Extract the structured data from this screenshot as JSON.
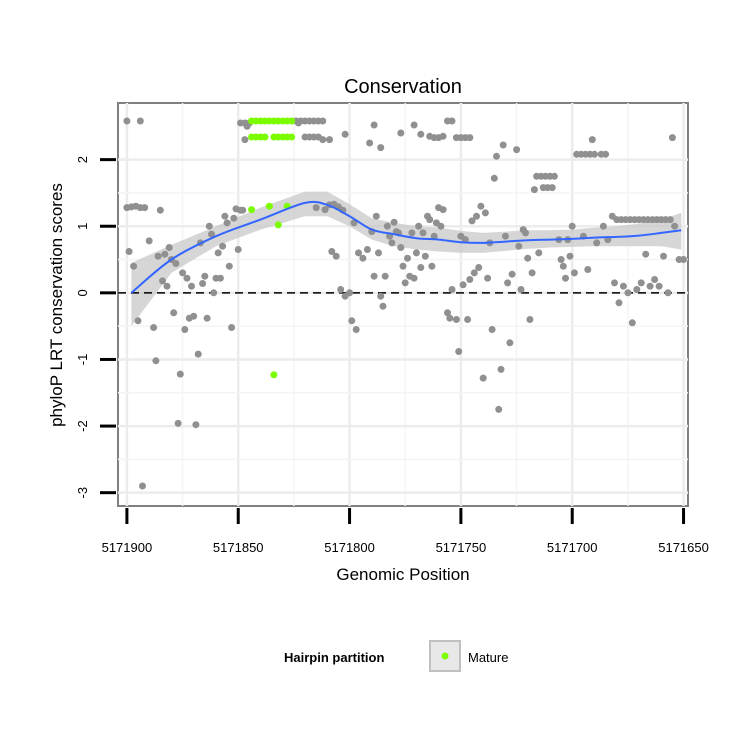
{
  "chart_data": {
    "type": "scatter",
    "title": "Conservation",
    "xlabel": "Genomic Position",
    "ylabel": "phyloP LRT conservation scores",
    "x_reversed": true,
    "xlim": [
      5171904,
      5171648
    ],
    "ylim": [
      -3.2,
      2.85
    ],
    "x_ticks": [
      5171900,
      5171850,
      5171800,
      5171750,
      5171700,
      5171650
    ],
    "x_tick_labels": [
      "5171900",
      "5171850",
      "5171800",
      "5171750",
      "5171700",
      "5171650"
    ],
    "y_ticks": [
      -3,
      -2,
      -1,
      0,
      1,
      2
    ],
    "y_tick_labels": [
      "-3",
      "-2",
      "-1",
      "0",
      "1",
      "2"
    ],
    "reference_line": {
      "y": 0,
      "style": "dashed"
    },
    "legend": {
      "title": "Hairpin partition",
      "entries": [
        {
          "label": "Mature",
          "color": "#7cfc00"
        }
      ],
      "position": "bottom"
    },
    "colors": {
      "other": "#909090",
      "mature": "#7cfc00",
      "trend": "#3366ff",
      "band": "#c8c8c8"
    },
    "series": [
      {
        "name": "Other",
        "points": [
          [
            5171900,
            2.58
          ],
          [
            5171894,
            2.58
          ],
          [
            5171900,
            1.28
          ],
          [
            5171898,
            1.29
          ],
          [
            5171896,
            1.3
          ],
          [
            5171894,
            1.28
          ],
          [
            5171892,
            1.28
          ],
          [
            5171899,
            0.62
          ],
          [
            5171897,
            0.4
          ],
          [
            5171895,
            -0.42
          ],
          [
            5171893,
            -2.9
          ],
          [
            5171890,
            0.78
          ],
          [
            5171888,
            -0.52
          ],
          [
            5171887,
            -1.02
          ],
          [
            5171886,
            0.55
          ],
          [
            5171885,
            1.24
          ],
          [
            5171884,
            0.18
          ],
          [
            5171883,
            0.58
          ],
          [
            5171882,
            0.1
          ],
          [
            5171881,
            0.68
          ],
          [
            5171880,
            0.5
          ],
          [
            5171879,
            -0.3
          ],
          [
            5171878,
            0.44
          ],
          [
            5171877,
            -1.96
          ],
          [
            5171876,
            -1.22
          ],
          [
            5171875,
            0.3
          ],
          [
            5171874,
            -0.55
          ],
          [
            5171873,
            0.22
          ],
          [
            5171872,
            -0.38
          ],
          [
            5171871,
            0.1
          ],
          [
            5171870,
            -0.35
          ],
          [
            5171869,
            -1.98
          ],
          [
            5171868,
            -0.92
          ],
          [
            5171867,
            0.75
          ],
          [
            5171866,
            0.14
          ],
          [
            5171865,
            0.25
          ],
          [
            5171864,
            -0.38
          ],
          [
            5171863,
            1.0
          ],
          [
            5171862,
            0.88
          ],
          [
            5171861,
            0.0
          ],
          [
            5171860,
            0.22
          ],
          [
            5171859,
            0.6
          ],
          [
            5171858,
            0.22
          ],
          [
            5171857,
            0.7
          ],
          [
            5171856,
            1.15
          ],
          [
            5171855,
            1.05
          ],
          [
            5171854,
            0.4
          ],
          [
            5171853,
            -0.52
          ],
          [
            5171852,
            1.12
          ],
          [
            5171851,
            1.26
          ],
          [
            5171850,
            0.65
          ],
          [
            5171849,
            1.24
          ],
          [
            5171848,
            1.24
          ],
          [
            5171847,
            2.3
          ],
          [
            5171846,
            2.5
          ],
          [
            5171845,
            2.55
          ],
          [
            5171822,
            2.58
          ],
          [
            5171820,
            2.58
          ],
          [
            5171818,
            2.58
          ],
          [
            5171816,
            2.58
          ],
          [
            5171814,
            2.58
          ],
          [
            5171812,
            2.58
          ],
          [
            5171820,
            2.34
          ],
          [
            5171818,
            2.34
          ],
          [
            5171816,
            2.34
          ],
          [
            5171814,
            2.34
          ],
          [
            5171812,
            2.3
          ],
          [
            5171815,
            1.28
          ],
          [
            5171811,
            1.25
          ],
          [
            5171809,
            1.32
          ],
          [
            5171807,
            1.33
          ],
          [
            5171805,
            1.29
          ],
          [
            5171803,
            1.24
          ],
          [
            5171808,
            0.62
          ],
          [
            5171806,
            0.55
          ],
          [
            5171804,
            0.05
          ],
          [
            5171802,
            -0.05
          ],
          [
            5171800,
            0.0
          ],
          [
            5171799,
            -0.42
          ],
          [
            5171797,
            -0.55
          ],
          [
            5171798,
            1.05
          ],
          [
            5171796,
            0.6
          ],
          [
            5171794,
            0.52
          ],
          [
            5171792,
            0.65
          ],
          [
            5171790,
            0.92
          ],
          [
            5171789,
            0.25
          ],
          [
            5171788,
            1.15
          ],
          [
            5171787,
            0.6
          ],
          [
            5171786,
            -0.05
          ],
          [
            5171785,
            -0.2
          ],
          [
            5171784,
            0.25
          ],
          [
            5171783,
            1.0
          ],
          [
            5171782,
            0.85
          ],
          [
            5171781,
            0.75
          ],
          [
            5171780,
            1.06
          ],
          [
            5171779,
            0.92
          ],
          [
            5171778,
            0.9
          ],
          [
            5171777,
            0.68
          ],
          [
            5171776,
            0.4
          ],
          [
            5171775,
            0.15
          ],
          [
            5171774,
            0.52
          ],
          [
            5171773,
            0.25
          ],
          [
            5171772,
            0.9
          ],
          [
            5171771,
            0.22
          ],
          [
            5171770,
            0.6
          ],
          [
            5171769,
            1.0
          ],
          [
            5171768,
            0.38
          ],
          [
            5171767,
            0.9
          ],
          [
            5171766,
            0.55
          ],
          [
            5171765,
            1.15
          ],
          [
            5171764,
            1.1
          ],
          [
            5171763,
            0.4
          ],
          [
            5171762,
            0.85
          ],
          [
            5171761,
            1.05
          ],
          [
            5171760,
            1.28
          ],
          [
            5171759,
            1.0
          ],
          [
            5171758,
            1.25
          ],
          [
            5171756,
            -0.3
          ],
          [
            5171755,
            -0.38
          ],
          [
            5171754,
            0.05
          ],
          [
            5171752,
            -0.4
          ],
          [
            5171751,
            -0.88
          ],
          [
            5171750,
            0.85
          ],
          [
            5171749,
            0.12
          ],
          [
            5171748,
            0.8
          ],
          [
            5171747,
            -0.4
          ],
          [
            5171746,
            0.2
          ],
          [
            5171745,
            1.08
          ],
          [
            5171744,
            0.3
          ],
          [
            5171743,
            1.15
          ],
          [
            5171742,
            0.38
          ],
          [
            5171741,
            1.3
          ],
          [
            5171740,
            -1.28
          ],
          [
            5171739,
            1.2
          ],
          [
            5171738,
            0.22
          ],
          [
            5171737,
            0.75
          ],
          [
            5171736,
            -0.55
          ],
          [
            5171735,
            1.72
          ],
          [
            5171734,
            2.05
          ],
          [
            5171733,
            -1.75
          ],
          [
            5171732,
            -1.15
          ],
          [
            5171731,
            2.22
          ],
          [
            5171730,
            0.85
          ],
          [
            5171729,
            0.15
          ],
          [
            5171728,
            -0.75
          ],
          [
            5171727,
            0.28
          ],
          [
            5171725,
            2.15
          ],
          [
            5171724,
            0.7
          ],
          [
            5171723,
            0.05
          ],
          [
            5171722,
            0.95
          ],
          [
            5171721,
            0.9
          ],
          [
            5171720,
            0.52
          ],
          [
            5171719,
            -0.4
          ],
          [
            5171718,
            0.3
          ],
          [
            5171717,
            1.55
          ],
          [
            5171716,
            1.75
          ],
          [
            5171714,
            1.75
          ],
          [
            5171712,
            1.75
          ],
          [
            5171710,
            1.75
          ],
          [
            5171708,
            1.75
          ],
          [
            5171715,
            0.6
          ],
          [
            5171713,
            1.58
          ],
          [
            5171711,
            1.58
          ],
          [
            5171709,
            1.58
          ],
          [
            5171706,
            0.8
          ],
          [
            5171705,
            0.5
          ],
          [
            5171704,
            0.4
          ],
          [
            5171703,
            0.22
          ],
          [
            5171702,
            0.8
          ],
          [
            5171701,
            0.55
          ],
          [
            5171700,
            1.0
          ],
          [
            5171699,
            0.3
          ],
          [
            5171698,
            2.08
          ],
          [
            5171696,
            2.08
          ],
          [
            5171694,
            2.08
          ],
          [
            5171692,
            2.08
          ],
          [
            5171690,
            2.08
          ],
          [
            5171695,
            0.85
          ],
          [
            5171693,
            0.35
          ],
          [
            5171691,
            2.3
          ],
          [
            5171689,
            0.75
          ],
          [
            5171687,
            2.08
          ],
          [
            5171685,
            2.08
          ],
          [
            5171686,
            1.0
          ],
          [
            5171684,
            0.8
          ],
          [
            5171682,
            1.15
          ],
          [
            5171680,
            1.1
          ],
          [
            5171678,
            1.1
          ],
          [
            5171676,
            1.1
          ],
          [
            5171674,
            1.1
          ],
          [
            5171672,
            1.1
          ],
          [
            5171670,
            1.1
          ],
          [
            5171668,
            1.1
          ],
          [
            5171666,
            1.1
          ],
          [
            5171664,
            1.1
          ],
          [
            5171662,
            1.1
          ],
          [
            5171660,
            1.1
          ],
          [
            5171658,
            1.1
          ],
          [
            5171656,
            1.1
          ],
          [
            5171681,
            0.15
          ],
          [
            5171679,
            -0.15
          ],
          [
            5171677,
            0.1
          ],
          [
            5171675,
            0.0
          ],
          [
            5171673,
            -0.45
          ],
          [
            5171671,
            0.05
          ],
          [
            5171669,
            0.15
          ],
          [
            5171667,
            0.58
          ],
          [
            5171665,
            0.1
          ],
          [
            5171663,
            0.2
          ],
          [
            5171661,
            0.1
          ],
          [
            5171659,
            0.55
          ],
          [
            5171657,
            0.0
          ],
          [
            5171655,
            2.33
          ],
          [
            5171654,
            1.0
          ],
          [
            5171652,
            0.5
          ],
          [
            5171650,
            0.5
          ],
          [
            5171849,
            2.55
          ],
          [
            5171847,
            2.55
          ],
          [
            5171824,
            2.58
          ],
          [
            5171823,
            2.55
          ],
          [
            5171809,
            2.3
          ],
          [
            5171802,
            2.38
          ],
          [
            5171791,
            2.25
          ],
          [
            5171789,
            2.52
          ],
          [
            5171786,
            2.18
          ],
          [
            5171777,
            2.4
          ],
          [
            5171771,
            2.52
          ],
          [
            5171768,
            2.38
          ],
          [
            5171764,
            2.35
          ],
          [
            5171762,
            2.33
          ],
          [
            5171760,
            2.33
          ],
          [
            5171758,
            2.35
          ],
          [
            5171756,
            2.58
          ],
          [
            5171754,
            2.58
          ],
          [
            5171752,
            2.33
          ],
          [
            5171750,
            2.33
          ],
          [
            5171748,
            2.33
          ],
          [
            5171746,
            2.33
          ]
        ]
      },
      {
        "name": "Mature",
        "points": [
          [
            5171844,
            2.58
          ],
          [
            5171842,
            2.58
          ],
          [
            5171840,
            2.58
          ],
          [
            5171838,
            2.58
          ],
          [
            5171836,
            2.58
          ],
          [
            5171834,
            2.58
          ],
          [
            5171832,
            2.58
          ],
          [
            5171830,
            2.58
          ],
          [
            5171828,
            2.58
          ],
          [
            5171826,
            2.58
          ],
          [
            5171844,
            2.34
          ],
          [
            5171842,
            2.34
          ],
          [
            5171840,
            2.34
          ],
          [
            5171838,
            2.34
          ],
          [
            5171834,
            2.34
          ],
          [
            5171832,
            2.34
          ],
          [
            5171830,
            2.34
          ],
          [
            5171828,
            2.34
          ],
          [
            5171826,
            2.34
          ],
          [
            5171844,
            1.25
          ],
          [
            5171836,
            1.3
          ],
          [
            5171828,
            1.3
          ],
          [
            5171832,
            1.02
          ],
          [
            5171834,
            -1.23
          ]
        ]
      }
    ],
    "trend": {
      "x": [
        5171898,
        5171880,
        5171860,
        5171840,
        5171820,
        5171810,
        5171800,
        5171790,
        5171780,
        5171770,
        5171760,
        5171750,
        5171740,
        5171730,
        5171720,
        5171710,
        5171700,
        5171690,
        5171680,
        5171670,
        5171660,
        5171651
      ],
      "y": [
        0.0,
        0.5,
        0.85,
        1.1,
        1.35,
        1.32,
        1.15,
        0.95,
        0.88,
        0.82,
        0.8,
        0.76,
        0.75,
        0.77,
        0.79,
        0.8,
        0.81,
        0.83,
        0.84,
        0.86,
        0.9,
        0.94
      ],
      "lower": [
        -0.5,
        0.3,
        0.7,
        0.95,
        1.15,
        1.15,
        1.0,
        0.8,
        0.7,
        0.65,
        0.62,
        0.6,
        0.6,
        0.63,
        0.66,
        0.68,
        0.69,
        0.7,
        0.7,
        0.7,
        0.7,
        0.65
      ],
      "upper": [
        0.45,
        0.72,
        1.0,
        1.28,
        1.52,
        1.52,
        1.33,
        1.12,
        1.05,
        1.0,
        0.98,
        0.93,
        0.9,
        0.92,
        0.94,
        0.94,
        0.95,
        0.98,
        1.0,
        1.04,
        1.1,
        1.2
      ]
    }
  }
}
